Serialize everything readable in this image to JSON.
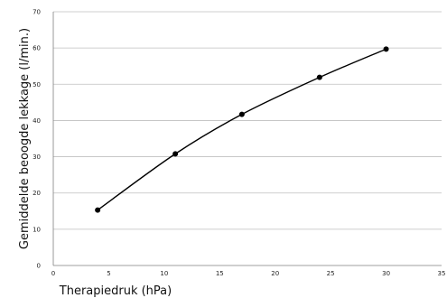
{
  "chart_data": {
    "type": "line",
    "xlabel": "Therapiedruk (hPa)",
    "ylabel": "Gemiddelde beoogde lekkage (l/min.)",
    "xlim": [
      0,
      35
    ],
    "ylim": [
      0,
      70
    ],
    "x_ticks": [
      "0",
      "5",
      "10",
      "15",
      "20",
      "25",
      "30",
      "35"
    ],
    "y_ticks": [
      "0",
      "10",
      "20",
      "30",
      "40",
      "50",
      "60",
      "70"
    ],
    "grid": "horizontal",
    "legend": "none",
    "series": [
      {
        "color": "#000000",
        "x": [
          4,
          11,
          17,
          24,
          30
        ],
        "y": [
          15.3,
          30.8,
          41.7,
          51.9,
          59.7
        ]
      }
    ]
  }
}
